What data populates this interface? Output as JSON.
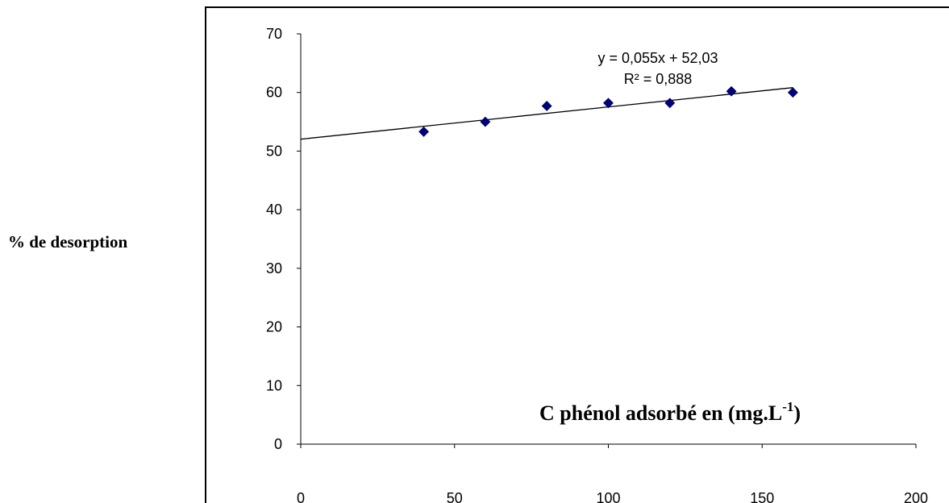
{
  "chart_data": {
    "type": "scatter",
    "ylabel": "% de desorption",
    "xlabel": {
      "text": "C phénol adsorbé en (mg.L",
      "superscript": "-1",
      "suffix": ")"
    },
    "xlim": [
      0,
      200
    ],
    "ylim": [
      0,
      70
    ],
    "xticks": [
      0,
      50,
      100,
      150,
      200
    ],
    "yticks": [
      0,
      10,
      20,
      30,
      40,
      50,
      60,
      70
    ],
    "grid": false,
    "legend": "none",
    "series": [
      {
        "marker": "diamond",
        "color": "#000080",
        "x": [
          40,
          60,
          80,
          100,
          120,
          140,
          160
        ],
        "y": [
          53.3,
          55.0,
          57.7,
          58.2,
          58.2,
          60.2,
          60.0
        ]
      }
    ],
    "trendline": {
      "slope": 0.055,
      "intercept": 52.03,
      "x_range": [
        0,
        160
      ],
      "color": "#000000",
      "equation": "y = 0,055x + 52,03",
      "r2": "R² = 0,888"
    }
  }
}
